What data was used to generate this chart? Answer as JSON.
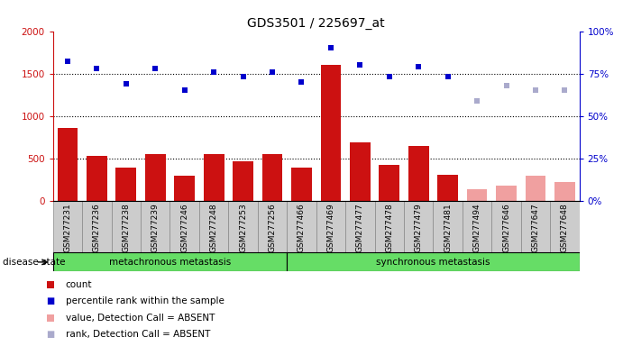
{
  "title": "GDS3501 / 225697_at",
  "samples": [
    "GSM277231",
    "GSM277236",
    "GSM277238",
    "GSM277239",
    "GSM277246",
    "GSM277248",
    "GSM277253",
    "GSM277256",
    "GSM277466",
    "GSM277469",
    "GSM277477",
    "GSM277478",
    "GSM277479",
    "GSM277481",
    "GSM277494",
    "GSM277646",
    "GSM277647",
    "GSM277648"
  ],
  "bar_values": [
    860,
    525,
    385,
    555,
    290,
    555,
    460,
    555,
    385,
    1600,
    690,
    420,
    650,
    310,
    140,
    175,
    290,
    220
  ],
  "bar_absent": [
    false,
    false,
    false,
    false,
    false,
    false,
    false,
    false,
    false,
    false,
    false,
    false,
    false,
    false,
    true,
    true,
    true,
    true
  ],
  "rank_values": [
    82,
    78,
    69,
    78,
    65,
    76,
    73,
    76,
    70,
    90,
    80,
    73,
    79,
    73,
    59,
    68,
    65,
    65
  ],
  "rank_absent": [
    false,
    false,
    false,
    false,
    false,
    false,
    false,
    false,
    false,
    false,
    false,
    false,
    false,
    false,
    true,
    true,
    true,
    true
  ],
  "group1_label": "metachronous metastasis",
  "group2_label": "synchronous metastasis",
  "group1_count": 8,
  "group2_count": 10,
  "ylim_left": [
    0,
    2000
  ],
  "ylim_right": [
    0,
    100
  ],
  "yticks_left": [
    0,
    500,
    1000,
    1500,
    2000
  ],
  "ytick_labels_left": [
    "0",
    "500",
    "1000",
    "1500",
    "2000"
  ],
  "yticks_right": [
    0,
    25,
    50,
    75,
    100
  ],
  "ytick_labels_right": [
    "0%",
    "25%",
    "50%",
    "75%",
    "100%"
  ],
  "bar_color_present": "#cc1111",
  "bar_color_absent": "#f0a0a0",
  "rank_color_present": "#0000cc",
  "rank_color_absent": "#aaaacc",
  "group_bg_color": "#66dd66",
  "xtick_bg_color": "#cccccc",
  "disease_state_label": "disease state",
  "legend_items": [
    {
      "label": "count",
      "color": "#cc1111",
      "type": "rect"
    },
    {
      "label": "percentile rank within the sample",
      "color": "#0000cc",
      "type": "square"
    },
    {
      "label": "value, Detection Call = ABSENT",
      "color": "#f0a0a0",
      "type": "rect"
    },
    {
      "label": "rank, Detection Call = ABSENT",
      "color": "#aaaacc",
      "type": "square"
    }
  ]
}
